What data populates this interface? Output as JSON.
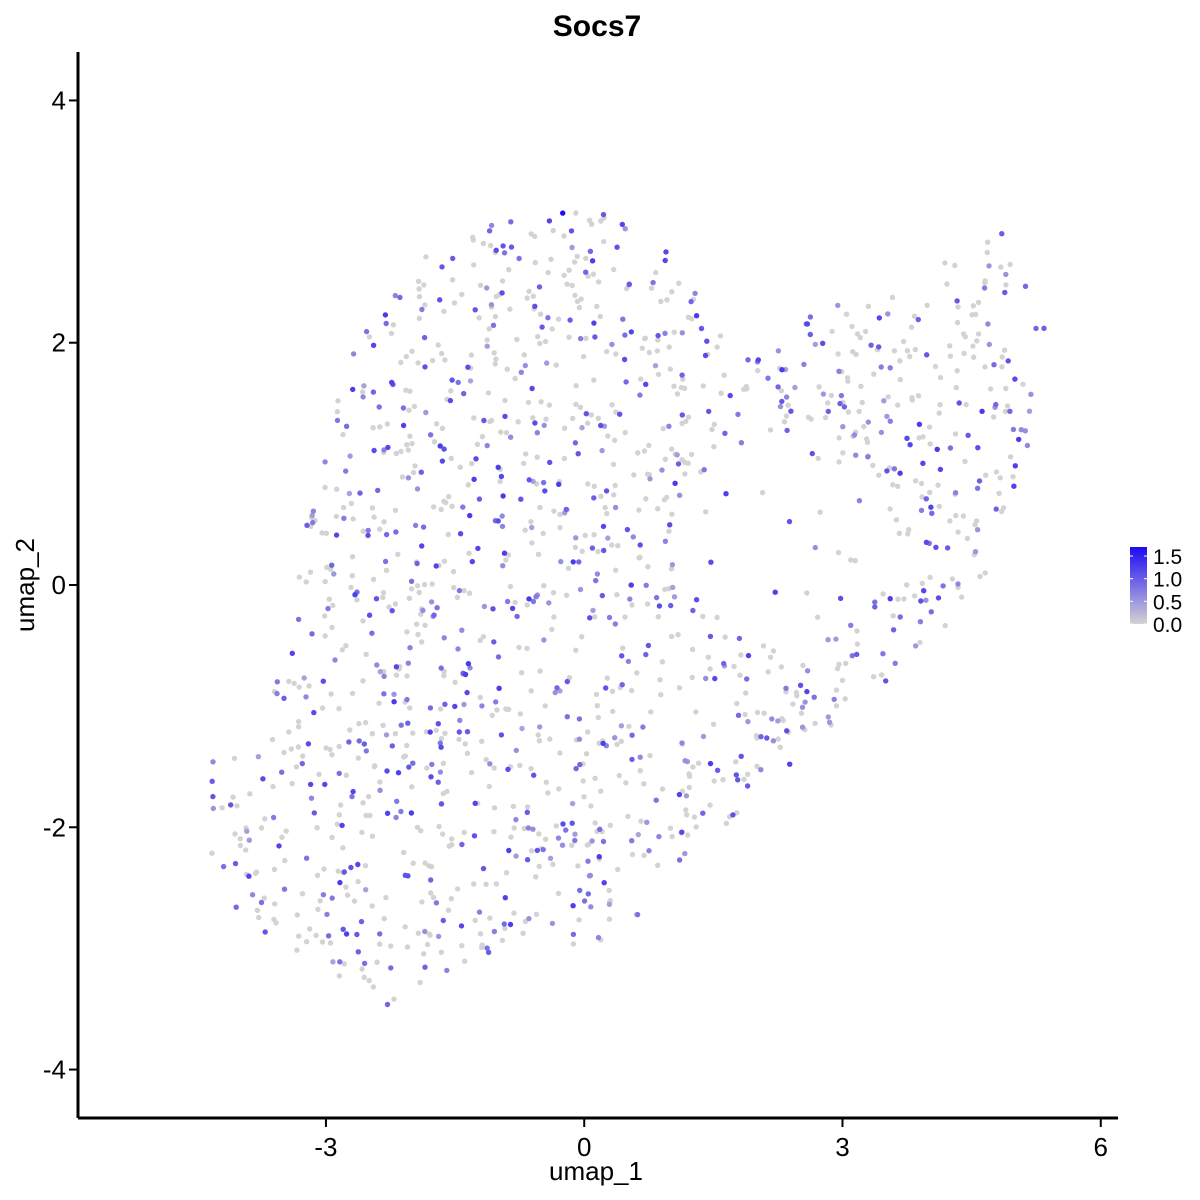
{
  "chart_data": {
    "type": "scatter",
    "title": "Socs7",
    "xlabel": "umap_1",
    "ylabel": "umap_2",
    "xlim": [
      -5.88,
      6.2
    ],
    "ylim": [
      -4.4,
      4.4
    ],
    "x_ticks": [
      -3,
      0,
      3,
      6
    ],
    "x_tick_labels": [
      "-3",
      "0",
      "3",
      "6"
    ],
    "y_ticks": [
      -4,
      -2,
      0,
      2,
      4
    ],
    "y_tick_labels": [
      "-4",
      "-2",
      "0",
      "2",
      "4"
    ],
    "grid": false,
    "legend": {
      "placement": "right",
      "type": "colorbar",
      "range": [
        0,
        1.7
      ],
      "ticks": [
        0.0,
        0.5,
        1.0,
        1.5
      ],
      "tick_labels": [
        "0.0",
        "0.5",
        "1.0",
        "1.5"
      ],
      "color_low": "#d3d3d3",
      "color_high": "#1d0bf5"
    },
    "points": [
      {
        "x": -0.25,
        "y": 3.07,
        "v": 1.7
      },
      {
        "x": 0.95,
        "y": 2.75,
        "v": 1.2
      },
      {
        "x": 4.85,
        "y": 2.9,
        "v": 1.0
      },
      {
        "x": 4.1,
        "y": 1.12,
        "v": 1.3
      },
      {
        "x": 0.25,
        "y": -0.85,
        "v": 1.1
      },
      {
        "x": -4.05,
        "y": -2.3,
        "v": 1.0
      },
      {
        "x": -1.05,
        "y": -0.47,
        "v": 1.0
      },
      {
        "x": 0.65,
        "y": 0.33,
        "v": 1.1
      }
    ],
    "point_cloud": {
      "n": 1500,
      "seed": 12345,
      "expressing_fraction": 0.4,
      "region_polygon": [
        [
          -4.4,
          -1.2
        ],
        [
          -4.25,
          -1.55
        ],
        [
          -3.95,
          -1.3
        ],
        [
          -3.35,
          -0.5
        ],
        [
          -3.35,
          0.2
        ],
        [
          -3.1,
          0.8
        ],
        [
          -2.9,
          1.5
        ],
        [
          -2.6,
          2.1
        ],
        [
          -2.2,
          2.55
        ],
        [
          -1.7,
          2.85
        ],
        [
          -0.9,
          3.02
        ],
        [
          -0.25,
          3.07
        ],
        [
          0.25,
          3.1
        ],
        [
          0.9,
          2.75
        ],
        [
          1.2,
          2.5
        ],
        [
          1.6,
          2.1
        ],
        [
          2.1,
          1.95
        ],
        [
          2.6,
          2.25
        ],
        [
          3.2,
          2.5
        ],
        [
          3.8,
          2.5
        ],
        [
          4.5,
          3.05
        ],
        [
          5.0,
          2.6
        ],
        [
          5.4,
          2.3
        ],
        [
          5.35,
          1.7
        ],
        [
          5.1,
          1.0
        ],
        [
          5.0,
          0.6
        ],
        [
          4.75,
          0.1
        ],
        [
          4.2,
          -0.35
        ],
        [
          3.55,
          -0.85
        ],
        [
          2.85,
          -1.2
        ],
        [
          2.2,
          -1.65
        ],
        [
          1.6,
          -2.0
        ],
        [
          1.0,
          -2.45
        ],
        [
          0.6,
          -2.9
        ],
        [
          0.0,
          -3.05
        ],
        [
          -0.5,
          -2.8
        ],
        [
          -1.2,
          -3.1
        ],
        [
          -1.9,
          -3.3
        ],
        [
          -2.35,
          -3.5
        ],
        [
          -2.9,
          -3.25
        ],
        [
          -3.5,
          -3.0
        ],
        [
          -4.1,
          -2.7
        ],
        [
          -4.4,
          -2.15
        ],
        [
          -4.35,
          -1.75
        ]
      ]
    }
  }
}
